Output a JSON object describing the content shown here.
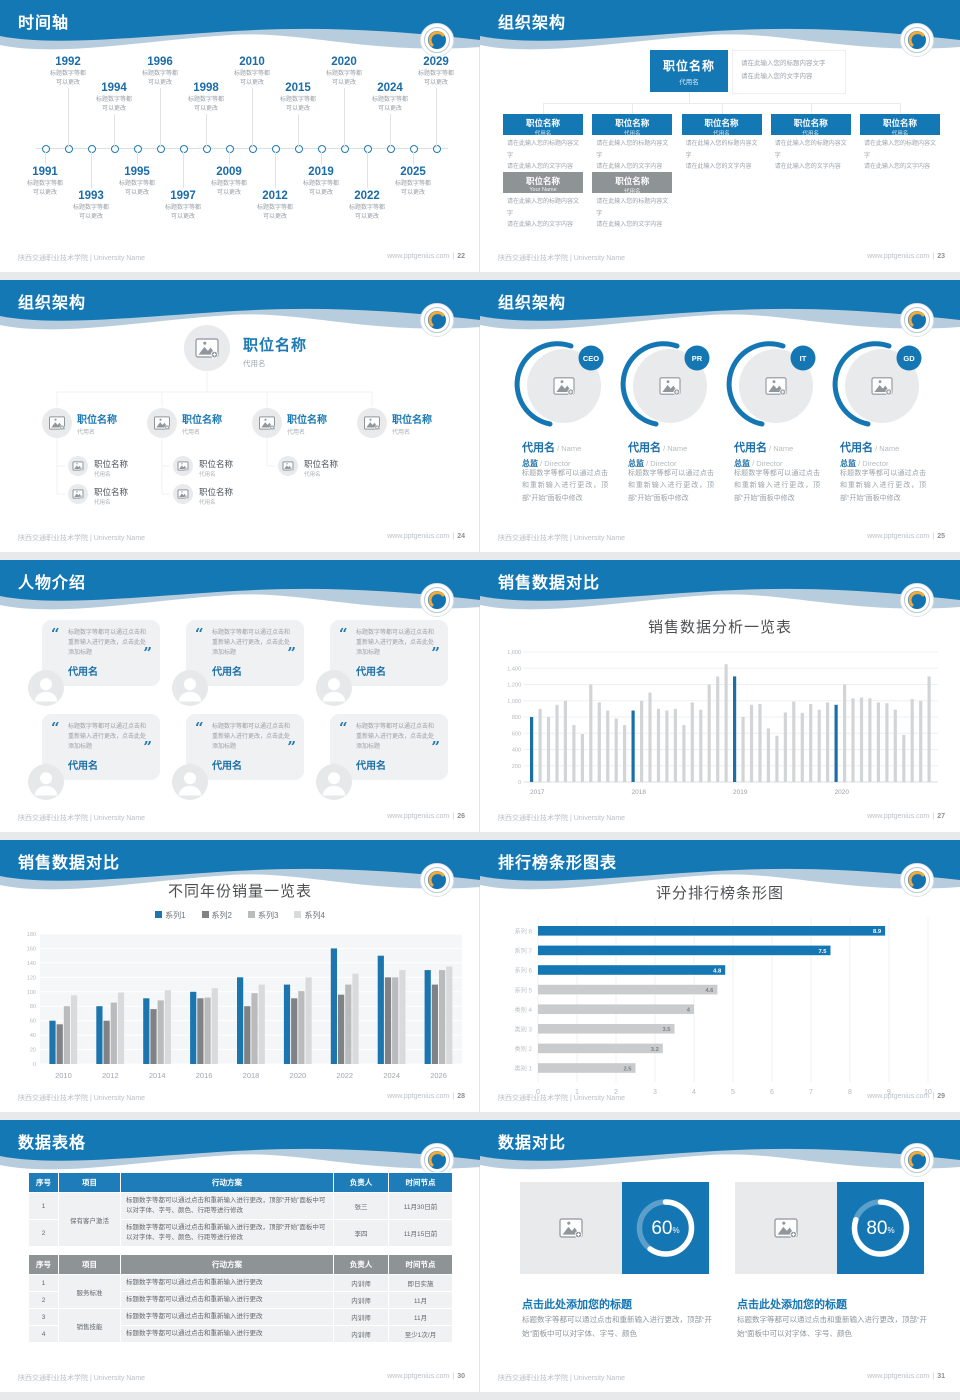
{
  "footer": {
    "org": "陕西交通职业技术学院 | University Name",
    "site": "www.pptgenius.com",
    "sep": "|"
  },
  "placeholders": {
    "quote_open": "“",
    "quote_close": "”"
  },
  "slides": {
    "timeline": {
      "title": "时间轴",
      "page": "22",
      "note": "标题数字等都可以更改",
      "top_years": [
        "1992",
        "1994",
        "1996",
        "1998",
        "2010",
        "2015",
        "2020",
        "2024",
        "2029"
      ],
      "bottom_years": [
        "1991",
        "1993",
        "1995",
        "1997",
        "2009",
        "2012",
        "2019",
        "2022",
        "2025"
      ]
    },
    "org_boxes": {
      "title": "组织架构",
      "page": "23",
      "root": {
        "title": "职位名称",
        "name": "代用名"
      },
      "note": [
        "请在此输入您的标题内容文字",
        "请在此输入您的文字内容"
      ],
      "body": [
        "请在此输入您的标题内容文字",
        "请在此输入您的文字内容"
      ],
      "children": [
        {
          "title": "职位名称",
          "name": "代用名"
        },
        {
          "title": "职位名称",
          "name": "代用名"
        },
        {
          "title": "职位名称",
          "name": "代用名"
        },
        {
          "title": "职位名称",
          "name": "代用名"
        },
        {
          "title": "职位名称",
          "name": "代用名"
        }
      ],
      "extra": [
        {
          "title": "职位名称",
          "name": "Your Name"
        },
        {
          "title": "职位名称",
          "name": "代用名"
        }
      ]
    },
    "org_tree": {
      "title": "组织架构",
      "page": "24",
      "root": {
        "title": "职位名称",
        "name": "代用名"
      },
      "branches": [
        {
          "title": "职位名称",
          "name": "代用名",
          "children": [
            {
              "title": "职位名称",
              "name": "代用名"
            },
            {
              "title": "职位名称",
              "name": "代用名"
            }
          ]
        },
        {
          "title": "职位名称",
          "name": "代用名",
          "children": [
            {
              "title": "职位名称",
              "name": "代用名"
            },
            {
              "title": "职位名称",
              "name": "代用名"
            }
          ]
        },
        {
          "title": "职位名称",
          "name": "代用名",
          "children": [
            {
              "title": "职位名称",
              "name": "代用名"
            }
          ]
        },
        {
          "title": "职位名称",
          "name": "代用名",
          "children": []
        }
      ]
    },
    "org_people": {
      "title": "组织架构",
      "page": "25",
      "roles": [
        "CEO",
        "PR",
        "IT",
        "GD"
      ],
      "name": "代用名",
      "name_en": "Name",
      "role_cn": "总监",
      "role_en": "Director",
      "desc": "标题数字等都可以通过点击和重新输入进行更改，顶部“开始”面板中修改"
    },
    "people_intro": {
      "title": "人物介绍",
      "page": "26",
      "count": 6,
      "quote": "标题数字等都可以通过点击和重新输入进行更改，点击此处添加标题",
      "name": "代用名"
    },
    "sales_monthly": {
      "title": "销售数据对比",
      "page": "27"
    },
    "sales_yearly": {
      "title": "销售数据对比",
      "page": "28"
    },
    "ranking": {
      "title": "排行榜条形图表",
      "page": "29"
    },
    "tables": {
      "title": "数据表格",
      "page": "30",
      "headers": [
        "序号",
        "项目",
        "行动方案",
        "负责人",
        "时间节点"
      ],
      "table1": {
        "groups": [
          {
            "label": "保有客户激活",
            "span": 2
          }
        ],
        "rows": [
          {
            "no": "1",
            "plan": "标题数字等都可以通过点击和重新输入进行更改，顶部“开始”面板中可以对字体、字号、颜色、行距等进行修改",
            "owner": "张三",
            "time": "11月30日前"
          },
          {
            "no": "2",
            "plan": "标题数字等都可以通过点击和重新输入进行更改，顶部“开始”面板中可以对字体、字号、颜色、行距等进行修改",
            "owner": "李四",
            "time": "11月15日前"
          }
        ]
      },
      "table2": {
        "groups": [
          {
            "label": "服务标准",
            "span": 2
          },
          {
            "label": "销售技能",
            "span": 2
          }
        ],
        "rows": [
          {
            "no": "1",
            "plan": "标题数字等都可以通过点击和重新输入进行更改",
            "owner": "内训师",
            "time": "即日实施"
          },
          {
            "no": "2",
            "plan": "标题数字等都可以通过点击和重新输入进行更改",
            "owner": "内训师",
            "time": "11月"
          },
          {
            "no": "3",
            "plan": "标题数字等都可以通过点击和重新输入进行更改",
            "owner": "内训师",
            "time": "11月"
          },
          {
            "no": "4",
            "plan": "标题数字等都可以通过点击和重新输入进行更改",
            "owner": "内训师",
            "time": "至少1次/月"
          }
        ]
      }
    },
    "compare": {
      "title": "数据对比",
      "page": "31",
      "items": [
        {
          "percent": 60,
          "heading": "点击此处添加您的标题",
          "body": "标题数字等都可以通过点击和重新输入进行更改，顶部“开始”面板中可以对字体、字号、颜色"
        },
        {
          "percent": 80,
          "heading": "点击此处添加您的标题",
          "body": "标题数字等都可以通过点击和重新输入进行更改，顶部“开始”面板中可以对字体、字号、颜色"
        }
      ]
    }
  },
  "chart_data": [
    {
      "type": "bar",
      "title": "销售数据分析一览表",
      "ylim": [
        0,
        1600
      ],
      "ytick_step": 200,
      "grid": true,
      "x_group_labels": [
        "2017",
        "2018",
        "2019",
        "2020"
      ],
      "bars_per_group": 12,
      "highlight_indices": [
        0,
        12,
        24,
        36
      ],
      "bar_color": "#d2d5d7",
      "highlight_color": "#1b6fa9",
      "values": [
        800,
        900,
        800,
        950,
        1000,
        700,
        590,
        1200,
        980,
        880,
        780,
        700,
        880,
        1000,
        1100,
        900,
        880,
        900,
        700,
        980,
        890,
        1200,
        1300,
        1450,
        1300,
        800,
        950,
        960,
        660,
        570,
        855,
        990,
        850,
        960,
        890,
        980,
        950,
        1200,
        1030,
        1040,
        1030,
        980,
        970,
        890,
        580,
        1020,
        1000,
        1300
      ]
    },
    {
      "type": "bar",
      "title": "不同年份销量一览表",
      "categories": [
        "2010",
        "2012",
        "2014",
        "2016",
        "2018",
        "2020",
        "2022",
        "2024",
        "2026"
      ],
      "ylim": [
        0,
        180
      ],
      "ytick_step": 20,
      "legend_position": "top",
      "series": [
        {
          "name": "系列1",
          "color": "#1b75ae",
          "values": [
            60,
            80,
            91,
            100,
            120,
            110,
            160,
            150,
            130
          ]
        },
        {
          "name": "系列2",
          "color": "#808285",
          "values": [
            55,
            60,
            76,
            91,
            80,
            91,
            96,
            120,
            110
          ]
        },
        {
          "name": "系列3",
          "color": "#b9bbbd",
          "values": [
            80,
            85,
            88,
            92,
            98,
            101,
            110,
            120,
            130
          ]
        },
        {
          "name": "系列4",
          "color": "#d9dadb",
          "values": [
            95,
            99,
            102,
            105,
            110,
            120,
            125,
            130,
            135
          ]
        }
      ]
    },
    {
      "type": "bar",
      "orientation": "horizontal",
      "title": "评分排行榜条形图",
      "categories": [
        "系列 8",
        "系列 7",
        "系列 6",
        "系列 5",
        "类别 4",
        "类别 3",
        "类别 2",
        "类别 1"
      ],
      "values": [
        8.9,
        7.5,
        4.8,
        4.6,
        4,
        3.5,
        3.2,
        2.5
      ],
      "value_labels": [
        "8.9",
        "7.5",
        "4.8",
        "4.6",
        "4",
        "3.5",
        "3.2",
        "2.5"
      ],
      "xlim": [
        0,
        10
      ],
      "xtick_step": 1,
      "blue_categories": 3,
      "bar_color_highlight": "#1576b4",
      "bar_color": "#c9cbcd"
    }
  ]
}
